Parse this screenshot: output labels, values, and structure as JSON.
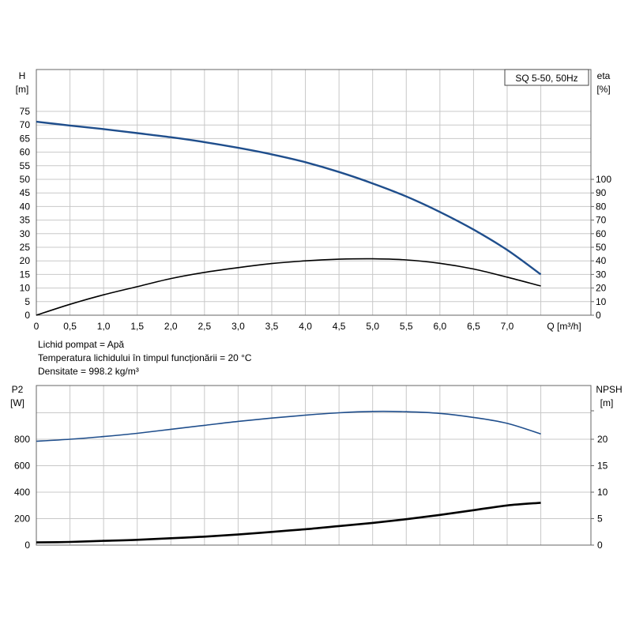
{
  "chart_data": [
    {
      "type": "line",
      "label_box": "SQ 5-50, 50Hz",
      "x_axis": {
        "label": "Q [m³/h]",
        "ticks": [
          "0",
          "0,5",
          "1,0",
          "1,5",
          "2,0",
          "2,5",
          "3,0",
          "3,5",
          "4,0",
          "4,5",
          "5,0",
          "5,5",
          "6,0",
          "6,5",
          "7,0"
        ],
        "lim": [
          0,
          8.0
        ]
      },
      "y_left": {
        "label": "H",
        "unit": "[m]",
        "ticks": [
          "0",
          "5",
          "10",
          "15",
          "20",
          "25",
          "30",
          "35",
          "40",
          "45",
          "50",
          "55",
          "60",
          "65",
          "70",
          "75"
        ],
        "lim": [
          0,
          75
        ]
      },
      "y_right": {
        "label": "eta",
        "unit": "[%]",
        "ticks": [
          "0",
          "10",
          "20",
          "30",
          "40",
          "50",
          "60",
          "70",
          "80",
          "90",
          "100"
        ],
        "lim": [
          0,
          100
        ]
      },
      "grid": true,
      "series": [
        {
          "axis": "left",
          "color": "#1f4e8c",
          "x": [
            0,
            0.5,
            1.0,
            1.5,
            2.0,
            2.5,
            3.0,
            3.5,
            4.0,
            4.5,
            5.0,
            5.5,
            6.0,
            6.5,
            7.0,
            7.5
          ],
          "y": [
            71.2,
            69.8,
            68.5,
            67.0,
            65.5,
            63.7,
            61.6,
            59.2,
            56.3,
            52.7,
            48.5,
            43.7,
            38.0,
            31.5,
            24.0,
            15.0
          ]
        },
        {
          "axis": "right",
          "color": "#000000",
          "x": [
            0,
            0.5,
            1.0,
            1.5,
            2.0,
            2.5,
            3.0,
            3.5,
            4.0,
            4.5,
            5.0,
            5.5,
            6.0,
            6.5,
            7.0,
            7.5
          ],
          "y": [
            0,
            8,
            15,
            21,
            27,
            31.5,
            35,
            38,
            40,
            41.2,
            41.5,
            40.7,
            38.2,
            34,
            28,
            21.5
          ]
        }
      ],
      "notes": [
        "Lichid pompat = Apă",
        "Temperatura lichidului în timpul funcționării = 20 °C",
        "Densitate = 998.2 kg/m³"
      ]
    },
    {
      "type": "line",
      "x_axis": {
        "lim": [
          0,
          8.0
        ]
      },
      "y_left": {
        "label": "P2",
        "unit": "[W]",
        "ticks": [
          "0",
          "200",
          "400",
          "600",
          "800"
        ],
        "lim": [
          0,
          1000
        ]
      },
      "y_right": {
        "label": "NPSH",
        "unit": "[m]",
        "ticks": [
          "0",
          "5",
          "10",
          "15",
          "20"
        ],
        "lim": [
          0,
          25
        ]
      },
      "grid": true,
      "series": [
        {
          "axis": "left",
          "color": "#1f4e8c",
          "x": [
            0,
            0.5,
            1.0,
            1.5,
            2.0,
            2.5,
            3.0,
            3.5,
            4.0,
            4.5,
            5.0,
            5.5,
            6.0,
            6.5,
            7.0,
            7.5
          ],
          "y": [
            785,
            800,
            820,
            845,
            875,
            905,
            935,
            960,
            982,
            1000,
            1010,
            1008,
            995,
            965,
            920,
            840
          ]
        },
        {
          "axis": "right",
          "color": "#000000",
          "x": [
            0,
            0.5,
            1.0,
            1.5,
            2.0,
            2.5,
            3.0,
            3.5,
            4.0,
            4.5,
            5.0,
            5.5,
            6.0,
            6.5,
            7.0,
            7.5
          ],
          "y": [
            0.5,
            0.6,
            0.8,
            1.0,
            1.3,
            1.6,
            2.0,
            2.5,
            3.0,
            3.6,
            4.2,
            4.9,
            5.7,
            6.6,
            7.5,
            8.0
          ]
        }
      ]
    }
  ]
}
